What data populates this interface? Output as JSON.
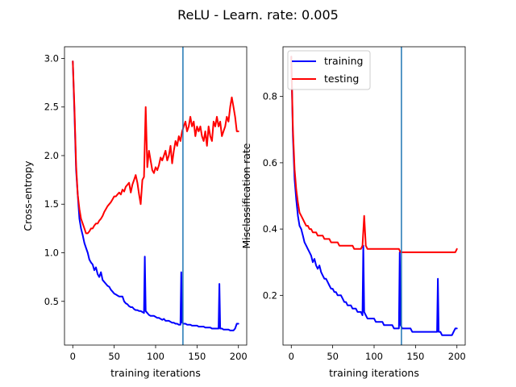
{
  "chart_data": {
    "suptitle": "ReLU - Learn. rate: 0.005",
    "panels": [
      {
        "type": "line",
        "xlabel": "training iterations",
        "ylabel": "Cross-entropy",
        "xlim": [
          -10,
          210
        ],
        "ylim": [
          0.05,
          3.12
        ],
        "xticks": [
          0,
          50,
          100,
          150,
          200
        ],
        "xtick_labels": [
          "0",
          "50",
          "100",
          "150",
          "200"
        ],
        "yticks": [
          0.5,
          1.0,
          1.5,
          2.0,
          2.5,
          3.0
        ],
        "ytick_labels": [
          "0.5",
          "1.0",
          "1.5",
          "2.0",
          "2.5",
          "3.0"
        ],
        "vline_x": 133,
        "vline_color": "#1f77b4",
        "legend": null,
        "series": [
          {
            "color": "#0000ff",
            "x": [
              0,
              2,
              4,
              6,
              8,
              10,
              12,
              14,
              16,
              18,
              20,
              22,
              24,
              26,
              28,
              30,
              32,
              34,
              36,
              38,
              40,
              42,
              44,
              46,
              48,
              50,
              52,
              54,
              56,
              58,
              60,
              62,
              64,
              66,
              68,
              70,
              72,
              74,
              76,
              78,
              80,
              82,
              84,
              86,
              87,
              88,
              90,
              92,
              94,
              96,
              98,
              100,
              102,
              104,
              106,
              108,
              110,
              112,
              114,
              116,
              118,
              120,
              122,
              124,
              126,
              128,
              130,
              131,
              132,
              134,
              136,
              138,
              140,
              142,
              144,
              146,
              148,
              150,
              152,
              154,
              156,
              158,
              160,
              162,
              164,
              166,
              168,
              170,
              172,
              174,
              176,
              177,
              178,
              180,
              182,
              184,
              186,
              188,
              190,
              192,
              194,
              196,
              198,
              200
            ],
            "y": [
              2.97,
              2.45,
              1.85,
              1.6,
              1.35,
              1.25,
              1.18,
              1.1,
              1.05,
              1.0,
              0.93,
              0.9,
              0.88,
              0.82,
              0.85,
              0.78,
              0.75,
              0.8,
              0.72,
              0.7,
              0.68,
              0.66,
              0.65,
              0.62,
              0.6,
              0.58,
              0.57,
              0.56,
              0.55,
              0.55,
              0.55,
              0.5,
              0.48,
              0.47,
              0.45,
              0.44,
              0.44,
              0.42,
              0.41,
              0.41,
              0.4,
              0.4,
              0.39,
              0.38,
              0.96,
              0.4,
              0.38,
              0.36,
              0.35,
              0.35,
              0.35,
              0.34,
              0.33,
              0.33,
              0.32,
              0.31,
              0.32,
              0.3,
              0.3,
              0.3,
              0.29,
              0.28,
              0.28,
              0.27,
              0.27,
              0.26,
              0.26,
              0.8,
              0.28,
              0.27,
              0.27,
              0.26,
              0.26,
              0.26,
              0.25,
              0.25,
              0.25,
              0.25,
              0.24,
              0.24,
              0.24,
              0.24,
              0.23,
              0.23,
              0.23,
              0.23,
              0.22,
              0.22,
              0.22,
              0.22,
              0.22,
              0.68,
              0.22,
              0.22,
              0.21,
              0.21,
              0.21,
              0.21,
              0.2,
              0.2,
              0.2,
              0.22,
              0.27,
              0.27
            ]
          },
          {
            "color": "#ff0000",
            "x": [
              0,
              2,
              4,
              6,
              8,
              10,
              12,
              14,
              16,
              18,
              20,
              22,
              24,
              26,
              28,
              30,
              32,
              34,
              36,
              38,
              40,
              42,
              44,
              46,
              48,
              50,
              52,
              54,
              56,
              58,
              60,
              62,
              64,
              66,
              68,
              70,
              72,
              74,
              76,
              78,
              80,
              82,
              84,
              86,
              88,
              90,
              92,
              94,
              96,
              98,
              100,
              102,
              104,
              106,
              108,
              110,
              112,
              114,
              116,
              118,
              120,
              122,
              124,
              126,
              128,
              130,
              132,
              134,
              136,
              138,
              140,
              142,
              144,
              146,
              148,
              150,
              152,
              154,
              156,
              158,
              160,
              162,
              164,
              166,
              168,
              170,
              172,
              174,
              176,
              178,
              180,
              182,
              184,
              186,
              188,
              190,
              192,
              194,
              196,
              198,
              200
            ],
            "y": [
              2.97,
              2.5,
              1.9,
              1.6,
              1.45,
              1.35,
              1.3,
              1.25,
              1.2,
              1.2,
              1.22,
              1.25,
              1.25,
              1.28,
              1.3,
              1.3,
              1.33,
              1.35,
              1.38,
              1.42,
              1.45,
              1.48,
              1.5,
              1.52,
              1.55,
              1.58,
              1.58,
              1.6,
              1.62,
              1.6,
              1.65,
              1.63,
              1.68,
              1.7,
              1.72,
              1.62,
              1.7,
              1.75,
              1.8,
              1.72,
              1.6,
              1.5,
              1.75,
              1.78,
              2.5,
              1.88,
              2.05,
              1.95,
              1.85,
              1.82,
              1.88,
              1.85,
              1.9,
              1.98,
              1.95,
              2.0,
              2.05,
              1.95,
              2.0,
              2.1,
              1.92,
              2.05,
              2.15,
              2.1,
              2.2,
              2.15,
              2.25,
              2.3,
              2.35,
              2.25,
              2.3,
              2.4,
              2.3,
              2.35,
              2.2,
              2.3,
              2.25,
              2.3,
              2.2,
              2.15,
              2.25,
              2.1,
              2.3,
              2.2,
              2.15,
              2.35,
              2.3,
              2.4,
              2.3,
              2.35,
              2.2,
              2.25,
              2.3,
              2.4,
              2.35,
              2.5,
              2.6,
              2.5,
              2.4,
              2.25,
              2.25
            ]
          }
        ]
      },
      {
        "type": "line",
        "xlabel": "training iterations",
        "ylabel": "Misclassification rate",
        "xlim": [
          -10,
          210
        ],
        "ylim": [
          0.05,
          0.95
        ],
        "xticks": [
          0,
          50,
          100,
          150,
          200
        ],
        "xtick_labels": [
          "0",
          "50",
          "100",
          "150",
          "200"
        ],
        "yticks": [
          0.2,
          0.4,
          0.6,
          0.8
        ],
        "ytick_labels": [
          "0.2",
          "0.4",
          "0.6",
          "0.8"
        ],
        "vline_x": 133,
        "vline_color": "#1f77b4",
        "legend": {
          "position": "upper-left",
          "entries": [
            {
              "label": "training",
              "color": "#0000ff"
            },
            {
              "label": "testing",
              "color": "#ff0000"
            }
          ]
        },
        "series": [
          {
            "color": "#0000ff",
            "x": [
              0,
              2,
              4,
              6,
              8,
              10,
              12,
              14,
              16,
              18,
              20,
              22,
              24,
              26,
              28,
              30,
              32,
              34,
              36,
              38,
              40,
              42,
              44,
              46,
              48,
              50,
              52,
              54,
              56,
              58,
              60,
              62,
              64,
              66,
              68,
              70,
              72,
              74,
              76,
              78,
              80,
              82,
              84,
              86,
              87,
              88,
              90,
              92,
              94,
              96,
              98,
              100,
              102,
              104,
              106,
              108,
              110,
              112,
              114,
              116,
              118,
              120,
              122,
              124,
              126,
              128,
              130,
              131,
              132,
              134,
              136,
              138,
              140,
              142,
              144,
              146,
              148,
              150,
              152,
              154,
              156,
              158,
              160,
              162,
              164,
              166,
              168,
              170,
              172,
              174,
              176,
              177,
              178,
              180,
              182,
              184,
              186,
              188,
              190,
              192,
              194,
              196,
              198,
              200
            ],
            "y": [
              0.92,
              0.68,
              0.55,
              0.49,
              0.44,
              0.41,
              0.4,
              0.38,
              0.36,
              0.35,
              0.34,
              0.33,
              0.32,
              0.3,
              0.31,
              0.29,
              0.28,
              0.29,
              0.27,
              0.26,
              0.25,
              0.25,
              0.24,
              0.23,
              0.22,
              0.22,
              0.21,
              0.21,
              0.2,
              0.2,
              0.2,
              0.19,
              0.18,
              0.18,
              0.17,
              0.17,
              0.17,
              0.16,
              0.16,
              0.16,
              0.15,
              0.15,
              0.15,
              0.14,
              0.35,
              0.15,
              0.14,
              0.13,
              0.13,
              0.13,
              0.13,
              0.13,
              0.12,
              0.12,
              0.12,
              0.12,
              0.12,
              0.11,
              0.11,
              0.11,
              0.11,
              0.11,
              0.11,
              0.1,
              0.1,
              0.1,
              0.1,
              0.33,
              0.11,
              0.1,
              0.1,
              0.1,
              0.1,
              0.1,
              0.1,
              0.09,
              0.09,
              0.09,
              0.09,
              0.09,
              0.09,
              0.09,
              0.09,
              0.09,
              0.09,
              0.09,
              0.09,
              0.09,
              0.09,
              0.09,
              0.09,
              0.25,
              0.09,
              0.09,
              0.08,
              0.08,
              0.08,
              0.08,
              0.08,
              0.08,
              0.08,
              0.09,
              0.1,
              0.1
            ]
          },
          {
            "color": "#ff0000",
            "x": [
              0,
              2,
              4,
              6,
              8,
              10,
              12,
              14,
              16,
              18,
              20,
              22,
              24,
              26,
              28,
              30,
              32,
              34,
              36,
              38,
              40,
              42,
              44,
              46,
              48,
              50,
              52,
              54,
              56,
              58,
              60,
              62,
              64,
              66,
              68,
              70,
              72,
              74,
              76,
              78,
              80,
              82,
              84,
              86,
              88,
              90,
              92,
              94,
              96,
              98,
              100,
              102,
              104,
              106,
              108,
              110,
              112,
              114,
              116,
              118,
              120,
              122,
              124,
              126,
              128,
              130,
              132,
              134,
              136,
              138,
              140,
              142,
              144,
              146,
              148,
              150,
              152,
              154,
              156,
              158,
              160,
              162,
              164,
              166,
              168,
              170,
              172,
              174,
              176,
              178,
              180,
              182,
              184,
              186,
              188,
              190,
              192,
              194,
              196,
              198,
              200
            ],
            "y": [
              0.92,
              0.7,
              0.58,
              0.52,
              0.48,
              0.45,
              0.44,
              0.43,
              0.42,
              0.41,
              0.41,
              0.4,
              0.4,
              0.39,
              0.39,
              0.39,
              0.38,
              0.38,
              0.38,
              0.38,
              0.37,
              0.37,
              0.37,
              0.37,
              0.36,
              0.36,
              0.36,
              0.36,
              0.36,
              0.35,
              0.35,
              0.35,
              0.35,
              0.35,
              0.35,
              0.35,
              0.35,
              0.35,
              0.34,
              0.34,
              0.34,
              0.34,
              0.34,
              0.35,
              0.44,
              0.35,
              0.34,
              0.34,
              0.34,
              0.34,
              0.34,
              0.34,
              0.34,
              0.34,
              0.34,
              0.34,
              0.34,
              0.34,
              0.34,
              0.34,
              0.34,
              0.34,
              0.34,
              0.34,
              0.34,
              0.34,
              0.33,
              0.33,
              0.33,
              0.33,
              0.33,
              0.33,
              0.33,
              0.33,
              0.33,
              0.33,
              0.33,
              0.33,
              0.33,
              0.33,
              0.33,
              0.33,
              0.33,
              0.33,
              0.33,
              0.33,
              0.33,
              0.33,
              0.33,
              0.33,
              0.33,
              0.33,
              0.33,
              0.33,
              0.33,
              0.33,
              0.33,
              0.33,
              0.33,
              0.33,
              0.34
            ]
          }
        ]
      }
    ]
  }
}
